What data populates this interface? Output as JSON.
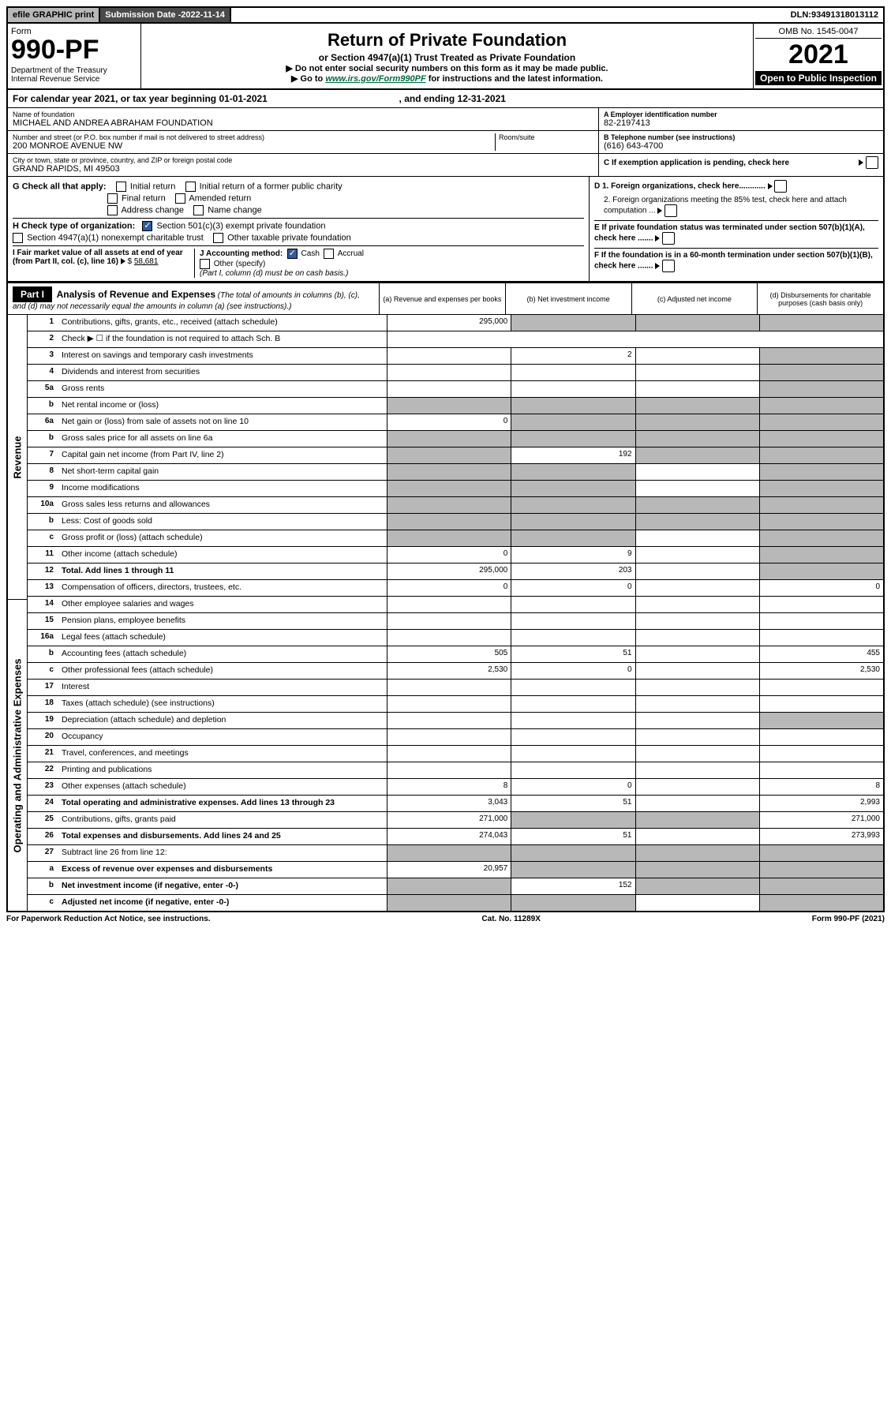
{
  "top": {
    "efile": "efile GRAPHIC print",
    "subdate_lbl": "Submission Date - ",
    "subdate": "2022-11-14",
    "dln_lbl": "DLN: ",
    "dln": "93491318013112"
  },
  "header": {
    "form_word": "Form",
    "form_no": "990-PF",
    "dept": "Department of the Treasury",
    "irs": "Internal Revenue Service",
    "title": "Return of Private Foundation",
    "subtitle": "or Section 4947(a)(1) Trust Treated as Private Foundation",
    "instr1": "▶ Do not enter social security numbers on this form as it may be made public.",
    "instr2_pre": "▶ Go to ",
    "instr2_link": "www.irs.gov/Form990PF",
    "instr2_post": " for instructions and the latest information.",
    "omb": "OMB No. 1545-0047",
    "year": "2021",
    "open": "Open to Public Inspection"
  },
  "cal": {
    "text_pre": "For calendar year 2021, or tax year beginning ",
    "begin": "01-01-2021",
    "text_mid": " , and ending ",
    "end": "12-31-2021"
  },
  "info": {
    "name_lbl": "Name of foundation",
    "name": "MICHAEL AND ANDREA ABRAHAM FOUNDATION",
    "addr_lbl": "Number and street (or P.O. box number if mail is not delivered to street address)",
    "addr": "200 MONROE AVENUE NW",
    "room_lbl": "Room/suite",
    "city_lbl": "City or town, state or province, country, and ZIP or foreign postal code",
    "city": "GRAND RAPIDS, MI  49503",
    "a_lbl": "A Employer identification number",
    "a_val": "82-2197413",
    "b_lbl": "B Telephone number (see instructions)",
    "b_val": "(616) 643-4700",
    "c_lbl": "C If exemption application is pending, check here"
  },
  "checks": {
    "g_lbl": "G Check all that apply:",
    "g1": "Initial return",
    "g2": "Initial return of a former public charity",
    "g3": "Final return",
    "g4": "Amended return",
    "g5": "Address change",
    "g6": "Name change",
    "h_lbl": "H Check type of organization:",
    "h1": "Section 501(c)(3) exempt private foundation",
    "h2": "Section 4947(a)(1) nonexempt charitable trust",
    "h3": "Other taxable private foundation",
    "i_lbl": "I Fair market value of all assets at end of year (from Part II, col. (c), line 16)",
    "i_val": "58,681",
    "j_lbl": "J Accounting method:",
    "j1": "Cash",
    "j2": "Accrual",
    "j3": "Other (specify)",
    "j_note": "(Part I, column (d) must be on cash basis.)",
    "d1": "D 1. Foreign organizations, check here............",
    "d2": "2. Foreign organizations meeting the 85% test, check here and attach computation ...",
    "e": "E If private foundation status was terminated under section 507(b)(1)(A), check here .......",
    "f": "F If the foundation is in a 60-month termination under section 507(b)(1)(B), check here ......."
  },
  "part1": {
    "label": "Part I",
    "title": "Analysis of Revenue and Expenses",
    "note": "(The total of amounts in columns (b), (c), and (d) may not necessarily equal the amounts in column (a) (see instructions).)",
    "cols": {
      "a": "(a) Revenue and expenses per books",
      "b": "(b) Net investment income",
      "c": "(c) Adjusted net income",
      "d": "(d) Disbursements for charitable purposes (cash basis only)"
    }
  },
  "sections": {
    "revenue": "Revenue",
    "opex": "Operating and Administrative Expenses"
  },
  "rows": [
    {
      "sec": "rev",
      "n": "1",
      "d": "Contributions, gifts, grants, etc., received (attach schedule)",
      "a": "295,000",
      "b": "g",
      "c": "g",
      "dd": "g"
    },
    {
      "sec": "rev",
      "n": "2",
      "d": "Check ▶ ☐ if the foundation is not required to attach Sch. B",
      "nocells": true
    },
    {
      "sec": "rev",
      "n": "3",
      "d": "Interest on savings and temporary cash investments",
      "a": "",
      "b": "2",
      "c": "",
      "dd": "g"
    },
    {
      "sec": "rev",
      "n": "4",
      "d": "Dividends and interest from securities",
      "a": "",
      "b": "",
      "c": "",
      "dd": "g"
    },
    {
      "sec": "rev",
      "n": "5a",
      "d": "Gross rents",
      "a": "",
      "b": "",
      "c": "",
      "dd": "g"
    },
    {
      "sec": "rev",
      "n": "b",
      "d": "Net rental income or (loss)",
      "a": "g",
      "b": "g",
      "c": "g",
      "dd": "g"
    },
    {
      "sec": "rev",
      "n": "6a",
      "d": "Net gain or (loss) from sale of assets not on line 10",
      "a": "0",
      "b": "g",
      "c": "g",
      "dd": "g"
    },
    {
      "sec": "rev",
      "n": "b",
      "d": "Gross sales price for all assets on line 6a",
      "a": "g",
      "b": "g",
      "c": "g",
      "dd": "g"
    },
    {
      "sec": "rev",
      "n": "7",
      "d": "Capital gain net income (from Part IV, line 2)",
      "a": "g",
      "b": "192",
      "c": "g",
      "dd": "g"
    },
    {
      "sec": "rev",
      "n": "8",
      "d": "Net short-term capital gain",
      "a": "g",
      "b": "g",
      "c": "",
      "dd": "g"
    },
    {
      "sec": "rev",
      "n": "9",
      "d": "Income modifications",
      "a": "g",
      "b": "g",
      "c": "",
      "dd": "g"
    },
    {
      "sec": "rev",
      "n": "10a",
      "d": "Gross sales less returns and allowances",
      "a": "g",
      "b": "g",
      "c": "g",
      "dd": "g"
    },
    {
      "sec": "rev",
      "n": "b",
      "d": "Less: Cost of goods sold",
      "a": "g",
      "b": "g",
      "c": "g",
      "dd": "g"
    },
    {
      "sec": "rev",
      "n": "c",
      "d": "Gross profit or (loss) (attach schedule)",
      "a": "g",
      "b": "g",
      "c": "",
      "dd": "g"
    },
    {
      "sec": "rev",
      "n": "11",
      "d": "Other income (attach schedule)",
      "a": "0",
      "b": "9",
      "c": "",
      "dd": "g"
    },
    {
      "sec": "rev",
      "n": "12",
      "d": "Total. Add lines 1 through 11",
      "bold": true,
      "a": "295,000",
      "b": "203",
      "c": "",
      "dd": "g"
    },
    {
      "sec": "op",
      "n": "13",
      "d": "Compensation of officers, directors, trustees, etc.",
      "a": "0",
      "b": "0",
      "c": "",
      "dd": "0"
    },
    {
      "sec": "op",
      "n": "14",
      "d": "Other employee salaries and wages",
      "a": "",
      "b": "",
      "c": "",
      "dd": ""
    },
    {
      "sec": "op",
      "n": "15",
      "d": "Pension plans, employee benefits",
      "a": "",
      "b": "",
      "c": "",
      "dd": ""
    },
    {
      "sec": "op",
      "n": "16a",
      "d": "Legal fees (attach schedule)",
      "a": "",
      "b": "",
      "c": "",
      "dd": ""
    },
    {
      "sec": "op",
      "n": "b",
      "d": "Accounting fees (attach schedule)",
      "a": "505",
      "b": "51",
      "c": "",
      "dd": "455"
    },
    {
      "sec": "op",
      "n": "c",
      "d": "Other professional fees (attach schedule)",
      "a": "2,530",
      "b": "0",
      "c": "",
      "dd": "2,530"
    },
    {
      "sec": "op",
      "n": "17",
      "d": "Interest",
      "a": "",
      "b": "",
      "c": "",
      "dd": ""
    },
    {
      "sec": "op",
      "n": "18",
      "d": "Taxes (attach schedule) (see instructions)",
      "a": "",
      "b": "",
      "c": "",
      "dd": ""
    },
    {
      "sec": "op",
      "n": "19",
      "d": "Depreciation (attach schedule) and depletion",
      "a": "",
      "b": "",
      "c": "",
      "dd": "g"
    },
    {
      "sec": "op",
      "n": "20",
      "d": "Occupancy",
      "a": "",
      "b": "",
      "c": "",
      "dd": ""
    },
    {
      "sec": "op",
      "n": "21",
      "d": "Travel, conferences, and meetings",
      "a": "",
      "b": "",
      "c": "",
      "dd": ""
    },
    {
      "sec": "op",
      "n": "22",
      "d": "Printing and publications",
      "a": "",
      "b": "",
      "c": "",
      "dd": ""
    },
    {
      "sec": "op",
      "n": "23",
      "d": "Other expenses (attach schedule)",
      "a": "8",
      "b": "0",
      "c": "",
      "dd": "8"
    },
    {
      "sec": "op",
      "n": "24",
      "d": "Total operating and administrative expenses. Add lines 13 through 23",
      "bold": true,
      "a": "3,043",
      "b": "51",
      "c": "",
      "dd": "2,993"
    },
    {
      "sec": "op",
      "n": "25",
      "d": "Contributions, gifts, grants paid",
      "a": "271,000",
      "b": "g",
      "c": "g",
      "dd": "271,000"
    },
    {
      "sec": "op",
      "n": "26",
      "d": "Total expenses and disbursements. Add lines 24 and 25",
      "bold": true,
      "a": "274,043",
      "b": "51",
      "c": "",
      "dd": "273,993"
    },
    {
      "sec": "none",
      "n": "27",
      "d": "Subtract line 26 from line 12:",
      "a": "g",
      "b": "g",
      "c": "g",
      "dd": "g"
    },
    {
      "sec": "none",
      "n": "a",
      "d": "Excess of revenue over expenses and disbursements",
      "bold": true,
      "a": "20,957",
      "b": "g",
      "c": "g",
      "dd": "g"
    },
    {
      "sec": "none",
      "n": "b",
      "d": "Net investment income (if negative, enter -0-)",
      "bold": true,
      "a": "g",
      "b": "152",
      "c": "g",
      "dd": "g"
    },
    {
      "sec": "none",
      "n": "c",
      "d": "Adjusted net income (if negative, enter -0-)",
      "bold": true,
      "a": "g",
      "b": "g",
      "c": "",
      "dd": "g"
    }
  ],
  "footer": {
    "left": "For Paperwork Reduction Act Notice, see instructions.",
    "mid": "Cat. No. 11289X",
    "right": "Form 990-PF (2021)"
  },
  "colors": {
    "grey": "#b8b8b8",
    "darkgrey": "#4a4a4a",
    "link": "#006a3f",
    "check": "#2e5c9e"
  }
}
